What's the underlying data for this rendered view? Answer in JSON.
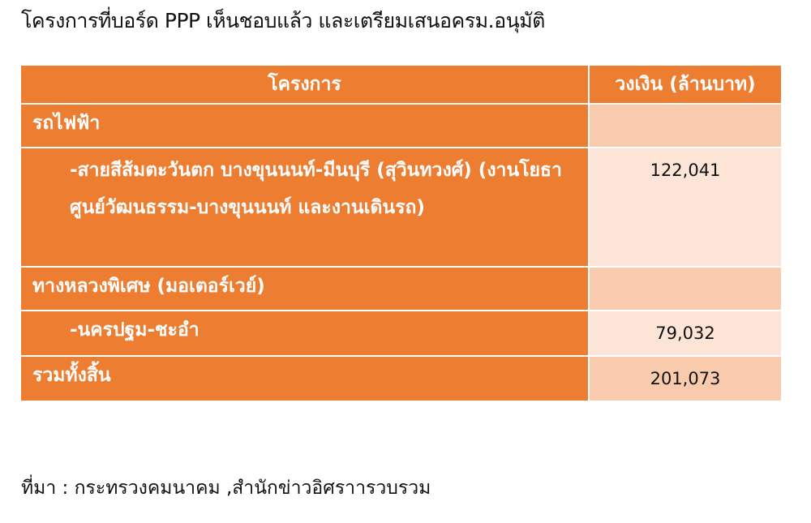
{
  "title": "โครงการที่บอร์ด PPP เห็นชอบแล้ว และเตรียมเสนอครม.อนุมัติ",
  "table": {
    "headers": [
      "โครงการ",
      "วงเงิน (ล้านบาท)"
    ],
    "rows": [
      {
        "project": "รถไฟฟ้า",
        "amount": ""
      },
      {
        "project": "-สายสีส้มตะวันตก บางขุนนนท์-มีนบุรี (สุวินทวงศ์) (งานโยธาศูนย์วัฒนธรรม-บางขุนนนท์ และงานเดินรถ)",
        "amount": "122,041"
      },
      {
        "project": "ทางหลวงพิเศษ (มอเตอร์เวย์)",
        "amount": ""
      },
      {
        "project": "-นครปฐม-ชะอำ",
        "amount": "79,032"
      },
      {
        "project": "รวมทั้งสิ้น",
        "amount": "201,073"
      }
    ]
  },
  "source": "ที่มา : กระทรวงคมนาคม ,สำนักข่าวอิศราารวบรวม",
  "colors": {
    "header": "#ED7D31",
    "cell_dark": "#F8CBAD",
    "cell_light": "#FCE4D6"
  }
}
